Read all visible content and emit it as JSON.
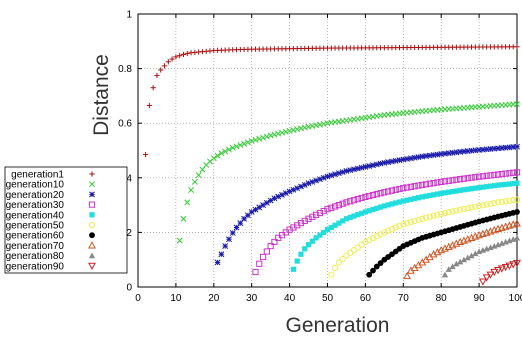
{
  "chart_data": {
    "type": "scatter",
    "xlabel": "Generation",
    "ylabel": "Distance",
    "xlim": [
      0,
      100
    ],
    "ylim": [
      0,
      1
    ],
    "xticks": [
      "0",
      "10",
      "20",
      "30",
      "40",
      "50",
      "60",
      "70",
      "80",
      "90",
      "100"
    ],
    "yticks": [
      "0",
      "0.2",
      "0.4",
      "0.6",
      "0.8",
      "1"
    ],
    "grid": true,
    "legend_position": "left",
    "series": [
      {
        "name": "generation1",
        "color": "#aa1111",
        "marker": "plus",
        "start": 2,
        "end": 100,
        "points": [
          [
            2,
            0.485
          ],
          [
            3,
            0.665
          ],
          [
            4,
            0.73
          ],
          [
            5,
            0.775
          ],
          [
            6,
            0.795
          ],
          [
            7,
            0.81
          ],
          [
            8,
            0.825
          ],
          [
            9,
            0.835
          ],
          [
            10,
            0.843
          ],
          [
            12,
            0.852
          ],
          [
            14,
            0.858
          ],
          [
            17,
            0.862
          ],
          [
            20,
            0.866
          ],
          [
            25,
            0.869
          ],
          [
            30,
            0.871
          ],
          [
            40,
            0.873
          ],
          [
            50,
            0.875
          ],
          [
            60,
            0.876
          ],
          [
            70,
            0.877
          ],
          [
            80,
            0.878
          ],
          [
            90,
            0.879
          ],
          [
            100,
            0.88
          ]
        ]
      },
      {
        "name": "generation10",
        "color": "#33cc33",
        "marker": "x",
        "start": 11,
        "end": 100,
        "points": [
          [
            11,
            0.17
          ],
          [
            12,
            0.25
          ],
          [
            13,
            0.31
          ],
          [
            14,
            0.355
          ],
          [
            15,
            0.385
          ],
          [
            16,
            0.41
          ],
          [
            17,
            0.43
          ],
          [
            18,
            0.447
          ],
          [
            19,
            0.46
          ],
          [
            20,
            0.472
          ],
          [
            22,
            0.49
          ],
          [
            25,
            0.51
          ],
          [
            30,
            0.535
          ],
          [
            35,
            0.555
          ],
          [
            40,
            0.572
          ],
          [
            45,
            0.587
          ],
          [
            50,
            0.6
          ],
          [
            55,
            0.61
          ],
          [
            60,
            0.62
          ],
          [
            65,
            0.63
          ],
          [
            70,
            0.637
          ],
          [
            75,
            0.644
          ],
          [
            80,
            0.65
          ],
          [
            85,
            0.655
          ],
          [
            90,
            0.66
          ],
          [
            95,
            0.665
          ],
          [
            100,
            0.67
          ]
        ]
      },
      {
        "name": "generation20",
        "color": "#1a1aaa",
        "marker": "star",
        "start": 21,
        "end": 100,
        "points": [
          [
            21,
            0.09
          ],
          [
            22,
            0.12
          ],
          [
            23,
            0.15
          ],
          [
            24,
            0.175
          ],
          [
            25,
            0.198
          ],
          [
            26,
            0.218
          ],
          [
            28,
            0.25
          ],
          [
            30,
            0.275
          ],
          [
            33,
            0.3
          ],
          [
            36,
            0.325
          ],
          [
            40,
            0.35
          ],
          [
            45,
            0.38
          ],
          [
            50,
            0.405
          ],
          [
            55,
            0.425
          ],
          [
            60,
            0.44
          ],
          [
            65,
            0.455
          ],
          [
            70,
            0.467
          ],
          [
            75,
            0.478
          ],
          [
            80,
            0.487
          ],
          [
            85,
            0.495
          ],
          [
            90,
            0.502
          ],
          [
            95,
            0.508
          ],
          [
            100,
            0.514
          ]
        ]
      },
      {
        "name": "generation30",
        "color": "#cc33cc",
        "marker": "square-open",
        "start": 31,
        "end": 100,
        "points": [
          [
            31,
            0.055
          ],
          [
            32,
            0.085
          ],
          [
            33,
            0.11
          ],
          [
            34,
            0.13
          ],
          [
            35,
            0.15
          ],
          [
            37,
            0.18
          ],
          [
            40,
            0.21
          ],
          [
            45,
            0.25
          ],
          [
            50,
            0.285
          ],
          [
            55,
            0.31
          ],
          [
            60,
            0.33
          ],
          [
            65,
            0.347
          ],
          [
            70,
            0.362
          ],
          [
            75,
            0.374
          ],
          [
            80,
            0.385
          ],
          [
            85,
            0.395
          ],
          [
            90,
            0.404
          ],
          [
            95,
            0.412
          ],
          [
            100,
            0.42
          ]
        ]
      },
      {
        "name": "generation40",
        "color": "#22dddd",
        "marker": "square",
        "start": 41,
        "end": 100,
        "points": [
          [
            41,
            0.065
          ],
          [
            42,
            0.095
          ],
          [
            43,
            0.12
          ],
          [
            44,
            0.14
          ],
          [
            45,
            0.155
          ],
          [
            47,
            0.18
          ],
          [
            50,
            0.21
          ],
          [
            55,
            0.25
          ],
          [
            60,
            0.275
          ],
          [
            65,
            0.297
          ],
          [
            70,
            0.315
          ],
          [
            75,
            0.33
          ],
          [
            80,
            0.343
          ],
          [
            85,
            0.354
          ],
          [
            90,
            0.364
          ],
          [
            95,
            0.373
          ],
          [
            100,
            0.38
          ]
        ]
      },
      {
        "name": "generation50",
        "color": "#eeee55",
        "marker": "circle-open",
        "start": 51,
        "end": 100,
        "points": [
          [
            51,
            0.045
          ],
          [
            52,
            0.07
          ],
          [
            53,
            0.09
          ],
          [
            55,
            0.115
          ],
          [
            58,
            0.145
          ],
          [
            60,
            0.165
          ],
          [
            65,
            0.2
          ],
          [
            70,
            0.23
          ],
          [
            75,
            0.25
          ],
          [
            80,
            0.268
          ],
          [
            85,
            0.283
          ],
          [
            90,
            0.297
          ],
          [
            95,
            0.31
          ],
          [
            100,
            0.32
          ]
        ]
      },
      {
        "name": "generation60",
        "color": "#000000",
        "marker": "circle",
        "start": 61,
        "end": 100,
        "points": [
          [
            61,
            0.045
          ],
          [
            62,
            0.06
          ],
          [
            63,
            0.075
          ],
          [
            65,
            0.1
          ],
          [
            68,
            0.13
          ],
          [
            70,
            0.15
          ],
          [
            75,
            0.18
          ],
          [
            80,
            0.2
          ],
          [
            85,
            0.22
          ],
          [
            90,
            0.24
          ],
          [
            95,
            0.258
          ],
          [
            100,
            0.275
          ]
        ]
      },
      {
        "name": "generation70",
        "color": "#cc5522",
        "marker": "triangle-open",
        "start": 71,
        "end": 100,
        "points": [
          [
            71,
            0.04
          ],
          [
            72,
            0.06
          ],
          [
            74,
            0.08
          ],
          [
            76,
            0.1
          ],
          [
            78,
            0.12
          ],
          [
            80,
            0.135
          ],
          [
            85,
            0.165
          ],
          [
            90,
            0.19
          ],
          [
            95,
            0.213
          ],
          [
            100,
            0.233
          ]
        ]
      },
      {
        "name": "generation80",
        "color": "#888888",
        "marker": "triangle",
        "start": 81,
        "end": 100,
        "points": [
          [
            81,
            0.045
          ],
          [
            82,
            0.065
          ],
          [
            84,
            0.085
          ],
          [
            86,
            0.1
          ],
          [
            88,
            0.115
          ],
          [
            90,
            0.13
          ],
          [
            93,
            0.145
          ],
          [
            96,
            0.16
          ],
          [
            100,
            0.18
          ]
        ]
      },
      {
        "name": "generation90",
        "color": "#cc2222",
        "marker": "triangle-down-open",
        "start": 91,
        "end": 100,
        "points": [
          [
            91,
            0.02
          ],
          [
            92,
            0.035
          ],
          [
            93,
            0.045
          ],
          [
            94,
            0.055
          ],
          [
            95,
            0.062
          ],
          [
            96,
            0.068
          ],
          [
            98,
            0.078
          ],
          [
            100,
            0.088
          ]
        ]
      }
    ]
  }
}
